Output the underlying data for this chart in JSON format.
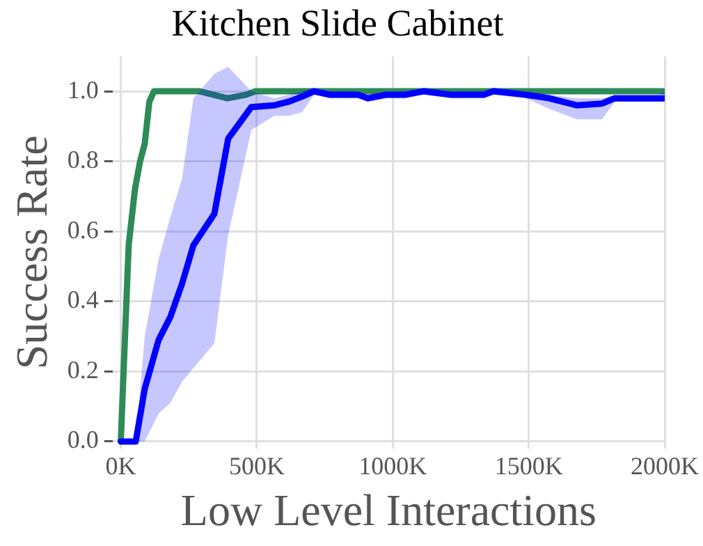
{
  "chart_data": {
    "type": "line",
    "title": "Kitchen Slide Cabinet",
    "xlabel": "Low Level Interactions",
    "ylabel": "Success Rate",
    "xlim": [
      -30000,
      2000000
    ],
    "ylim": [
      -0.02,
      1.1
    ],
    "xticks": [
      {
        "value": 0,
        "label": "0K"
      },
      {
        "value": 500000,
        "label": "500K"
      },
      {
        "value": 1000000,
        "label": "1000K"
      },
      {
        "value": 1500000,
        "label": "1500K"
      },
      {
        "value": 2000000,
        "label": "2000K"
      }
    ],
    "yticks": [
      {
        "value": 0,
        "label": "0.0"
      },
      {
        "value": 0.2,
        "label": "0.2"
      },
      {
        "value": 0.4,
        "label": "0.4"
      },
      {
        "value": 0.6,
        "label": "0.6"
      },
      {
        "value": 0.8,
        "label": "0.8"
      },
      {
        "value": 1,
        "label": "1.0"
      }
    ],
    "grid": true,
    "marker": "none",
    "line_style": "solid",
    "series": [
      {
        "color": "#0000ff",
        "x": [
          0,
          55000,
          88000,
          139000,
          182000,
          225000,
          267000,
          344000,
          395000,
          480000,
          565000,
          616000,
          667000,
          710000,
          770000,
          873000,
          908000,
          975000,
          1045000,
          1113000,
          1215000,
          1335000,
          1370000,
          1490000,
          1575000,
          1676000,
          1770000,
          1816000,
          1970000,
          2000000
        ],
        "values": [
          0,
          0,
          0.15,
          0.29,
          0.355,
          0.45,
          0.56,
          0.65,
          0.865,
          0.955,
          0.96,
          0.97,
          0.985,
          1.0,
          0.99,
          0.99,
          0.98,
          0.99,
          0.99,
          1.0,
          0.99,
          0.99,
          1.0,
          0.99,
          0.98,
          0.96,
          0.965,
          0.98,
          0.98,
          0.98
        ],
        "lower": [
          0,
          0,
          0,
          0.08,
          0.11,
          0.17,
          0.21,
          0.28,
          0.59,
          0.89,
          0.93,
          0.93,
          0.94,
          0.99,
          0.98,
          0.98,
          0.97,
          0.98,
          0.98,
          0.99,
          0.98,
          0.98,
          0.99,
          0.98,
          0.95,
          0.92,
          0.92,
          0.97,
          0.97,
          0.97
        ],
        "upper": [
          0,
          0,
          0.3,
          0.52,
          0.64,
          0.75,
          0.98,
          1.05,
          1.07,
          1.0,
          0.98,
          0.99,
          1.0,
          1.01,
          1.0,
          1.0,
          0.99,
          1.0,
          1.0,
          1.01,
          1.0,
          1.0,
          1.01,
          1.0,
          0.99,
          0.98,
          0.98,
          0.99,
          0.99,
          1.0
        ]
      },
      {
        "color": "#2e8b57",
        "x": [
          0,
          29000,
          52000,
          71000,
          88000,
          105000,
          122000,
          290000,
          392000,
          460000,
          495000,
          2000000
        ],
        "values": [
          0,
          0.56,
          0.72,
          0.8,
          0.85,
          0.97,
          1.0,
          1.0,
          0.98,
          0.99,
          1.0,
          1.0
        ]
      }
    ]
  }
}
